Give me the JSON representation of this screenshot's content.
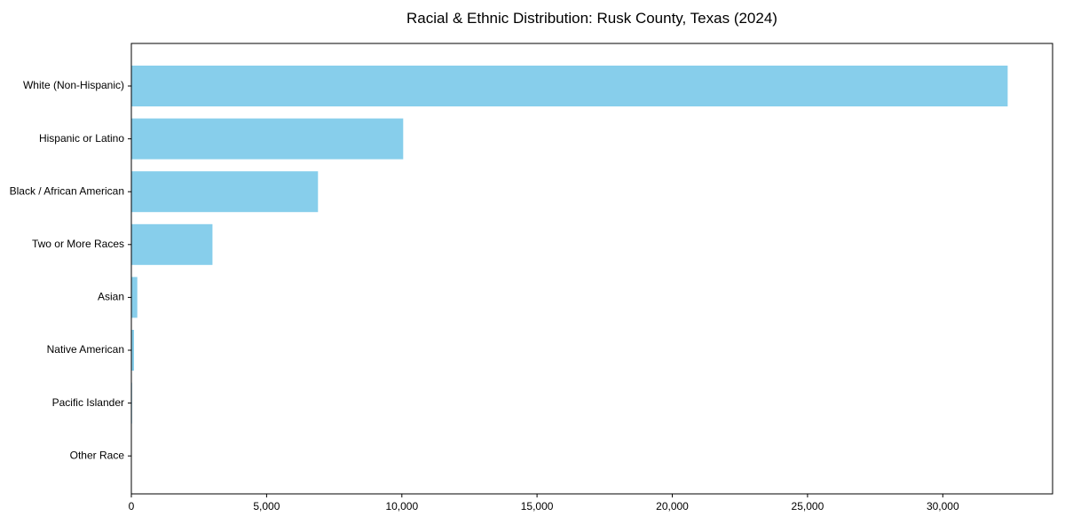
{
  "chart_data": {
    "type": "bar",
    "orientation": "horizontal",
    "title": "Racial & Ethnic Distribution: Rusk County, Texas (2024)",
    "categories": [
      "White (Non-Hispanic)",
      "Hispanic or Latino",
      "Black / African American",
      "Two or More Races",
      "Asian",
      "Native American",
      "Pacific Islander",
      "Other Race"
    ],
    "values": [
      32400,
      10050,
      6900,
      3000,
      220,
      100,
      25,
      10
    ],
    "xlabel": "",
    "ylabel": "",
    "xlim": [
      0,
      34060
    ],
    "xticks": [
      0,
      5000,
      10000,
      15000,
      20000,
      25000,
      30000
    ],
    "xtick_labels": [
      "0",
      "5,000",
      "10,000",
      "15,000",
      "20,000",
      "25,000",
      "30,000"
    ],
    "bar_color": "#87CEEB",
    "axis_color": "#000000",
    "background_color": "#FFFFFF",
    "grid": false,
    "legend": null
  }
}
